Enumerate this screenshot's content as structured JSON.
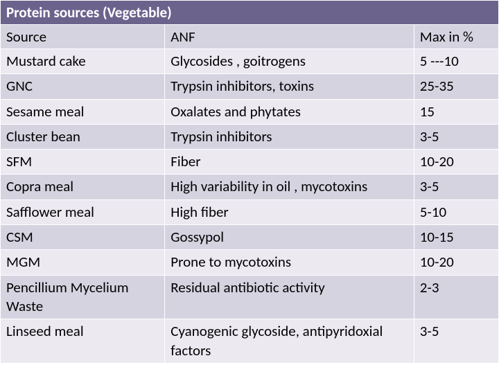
{
  "title": "Protein sources  (Vegetable)",
  "columns": [
    "Source",
    "ANF",
    "Max in %"
  ],
  "rows": [
    [
      "Mustard cake",
      "Glycosides , goitrogens",
      "5 ---10"
    ],
    [
      "GNC",
      "Trypsin inhibitors, toxins",
      "25-35"
    ],
    [
      "Sesame meal",
      "Oxalates and phytates",
      "15"
    ],
    [
      "Cluster bean",
      "Trypsin inhibitors",
      "3-5"
    ],
    [
      "SFM",
      "Fiber",
      "10-20"
    ],
    [
      "Copra meal",
      "High variability in oil , mycotoxins",
      "3-5"
    ],
    [
      "Safflower meal",
      "High fiber",
      "5-10"
    ],
    [
      "CSM",
      "Gossypol",
      "10-15"
    ],
    [
      "MGM",
      "Prone to mycotoxins",
      "10-20"
    ],
    [
      "Pencillium Mycelium Waste",
      "Residual antibiotic activity",
      "2-3"
    ],
    [
      "Linseed meal",
      "Cyanogenic glycoside, antipyridoxial factors",
      "3-5"
    ]
  ],
  "colors": {
    "title_bg": "#6c638d",
    "title_text": "#ffffff",
    "header_bg": "#d6d3e1",
    "row_odd_bg": "#ece9f1",
    "row_even_bg": "#d6d3e1",
    "text": "#000000",
    "border": "#ffffff"
  },
  "font_size": 21,
  "column_widths_pct": [
    33,
    50,
    17
  ]
}
